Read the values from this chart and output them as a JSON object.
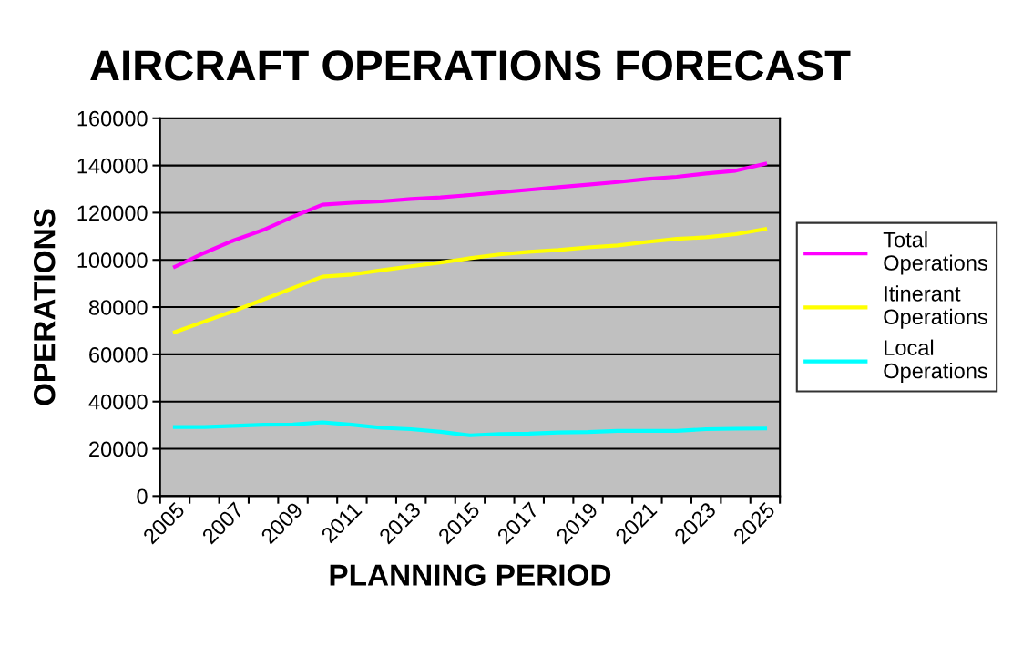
{
  "chart_data": {
    "type": "line",
    "title": "AIRCRAFT OPERATIONS FORECAST",
    "xlabel": "PLANNING PERIOD",
    "ylabel": "OPERATIONS",
    "categories": [
      "2005",
      null,
      "2007",
      null,
      "2009",
      null,
      "2011",
      null,
      "2013",
      null,
      "2015",
      null,
      "2017",
      null,
      "2019",
      null,
      "2021",
      null,
      "2023",
      null,
      "2025"
    ],
    "series": [
      {
        "name": "Total Operations",
        "color": "#ff00ff",
        "values": [
          97100,
          103000,
          108300,
          112700,
          118300,
          123400,
          124200,
          124800,
          125800,
          126500,
          127500,
          128600,
          129700,
          130800,
          131900,
          133000,
          134300,
          135200,
          136600,
          137800,
          140700
        ]
      },
      {
        "name": "Itinerant Operations",
        "color": "#ffff00",
        "values": [
          69400,
          73900,
          78400,
          83200,
          88100,
          92900,
          93800,
          95600,
          97300,
          98900,
          100700,
          102300,
          103400,
          104200,
          105300,
          106100,
          107600,
          108900,
          109600,
          110900,
          113100
        ]
      },
      {
        "name": "Local Operations",
        "color": "#00ffff",
        "values": [
          29200,
          29200,
          29700,
          30200,
          30300,
          31200,
          30200,
          28900,
          28300,
          27200,
          25700,
          26300,
          26400,
          26900,
          27100,
          27600,
          27600,
          27600,
          28300,
          28500,
          28600
        ]
      }
    ],
    "ylim": [
      0,
      160000
    ],
    "yticks": [
      0,
      20000,
      40000,
      60000,
      80000,
      100000,
      120000,
      140000,
      160000
    ],
    "grid": "y",
    "legend": "right",
    "marker": "none",
    "line_style": "solid"
  }
}
